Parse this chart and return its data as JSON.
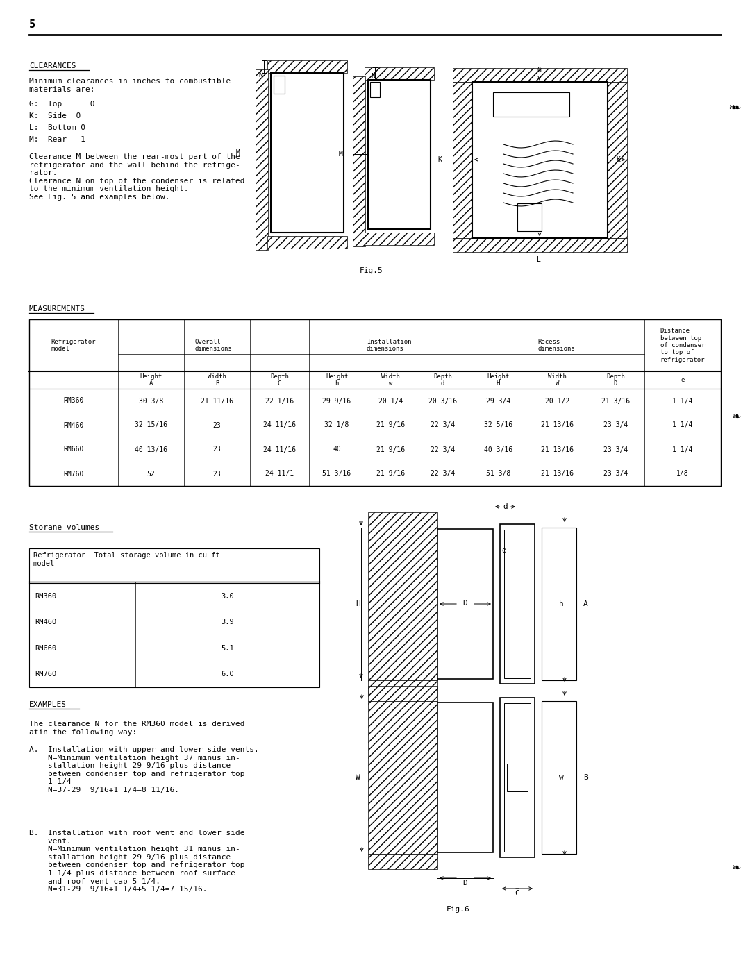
{
  "page_number": "5",
  "bg_color": "#ffffff",
  "text_color": "#000000",
  "clearances_heading": "CLEARANCES",
  "clearances_para1": "Minimum clearances in inches to combustible\nmaterials are:",
  "clearances_items": [
    "G:  Top      0",
    "K:  Side  0",
    "L:  Bottom 0",
    "M:  Rear   1"
  ],
  "clearances_para2": "Clearance M between the rear-most part of the\nrefrigerator and the wall behind the refrige-\nrator.\nClearance N on top of the condenser is related\nto the minimum ventilation height.\nSee Fig. 5 and examples below.",
  "fig5_caption": "Fig.5",
  "meas_heading": "MEASUREMENTS",
  "meas_col_headers1": [
    "Refrigerator\nmodel",
    "Overall\ndimensions",
    "Installation\ndimensions",
    "Recess\ndimensions",
    "Distance\nbetween top\nof condenser\nto top of\nrefrigerator"
  ],
  "meas_col_headers2": [
    "Height\nA",
    "Width\nB",
    "Depth\nC",
    "Height\nh",
    "Width\nw",
    "Depth\nd",
    "Height\nH",
    "Width\nW",
    "Depth\nD",
    "e"
  ],
  "meas_data": [
    [
      "RM360",
      "30 3/8",
      "21 11/16",
      "22 1/16",
      "29 9/16",
      "20 1/4",
      "20 3/16",
      "29 3/4",
      "20 1/2",
      "21 3/16",
      "1 1/4"
    ],
    [
      "RM460",
      "32 15/16",
      "23",
      "24 11/16",
      "32 1/8",
      "21 9/16",
      "22 3/4",
      "32 5/16",
      "21 13/16",
      "23 3/4",
      "1 1/4"
    ],
    [
      "RM660",
      "40 13/16",
      "23",
      "24 11/16",
      "40",
      "21 9/16",
      "22 3/4",
      "40 3/16",
      "21 13/16",
      "23 3/4",
      "1 1/4"
    ],
    [
      "RM760",
      "52",
      "23",
      "24 11/1",
      "51 3/16",
      "21 9/16",
      "22 3/4",
      "51 3/8",
      "21 13/16",
      "23 3/4",
      "1/8"
    ]
  ],
  "stor_heading": "Storane volumes",
  "stor_header_text": "Refrigerator  Total storage volume in cu ft\nmodel",
  "stor_data": [
    [
      "RM360",
      "3.0"
    ],
    [
      "RM460",
      "3.9"
    ],
    [
      "RM660",
      "5.1"
    ],
    [
      "RM760",
      "6.0"
    ]
  ],
  "examples_heading": "EXAMPLES",
  "examples_para1": "The clearance N for the RM360 model is derived\natin the following way:",
  "examples_a": "A.  Installation with upper and lower side vents.\n    N=Minimum ventilation height 37 minus in-\n    stallation height 29 9/16 plus distance\n    between condenser top and refrigerator top\n    1 1/4\n    N=37-29  9/16+1 1/4=8 11/16.",
  "examples_b": "B.  Installation with roof vent and lower side\n    vent.\n    N=Minimum ventilation height 31 minus in-\n    stallation height 29 9/16 plus distance\n    between condenser top and refrigerator top\n    1 1/4 plus distance between roof surface\n    and roof vent cap 5 1/4.\n    N=31-29  9/16+1 1/4+5 1/4=7 15/16.",
  "fig6_caption": "Fig.6"
}
